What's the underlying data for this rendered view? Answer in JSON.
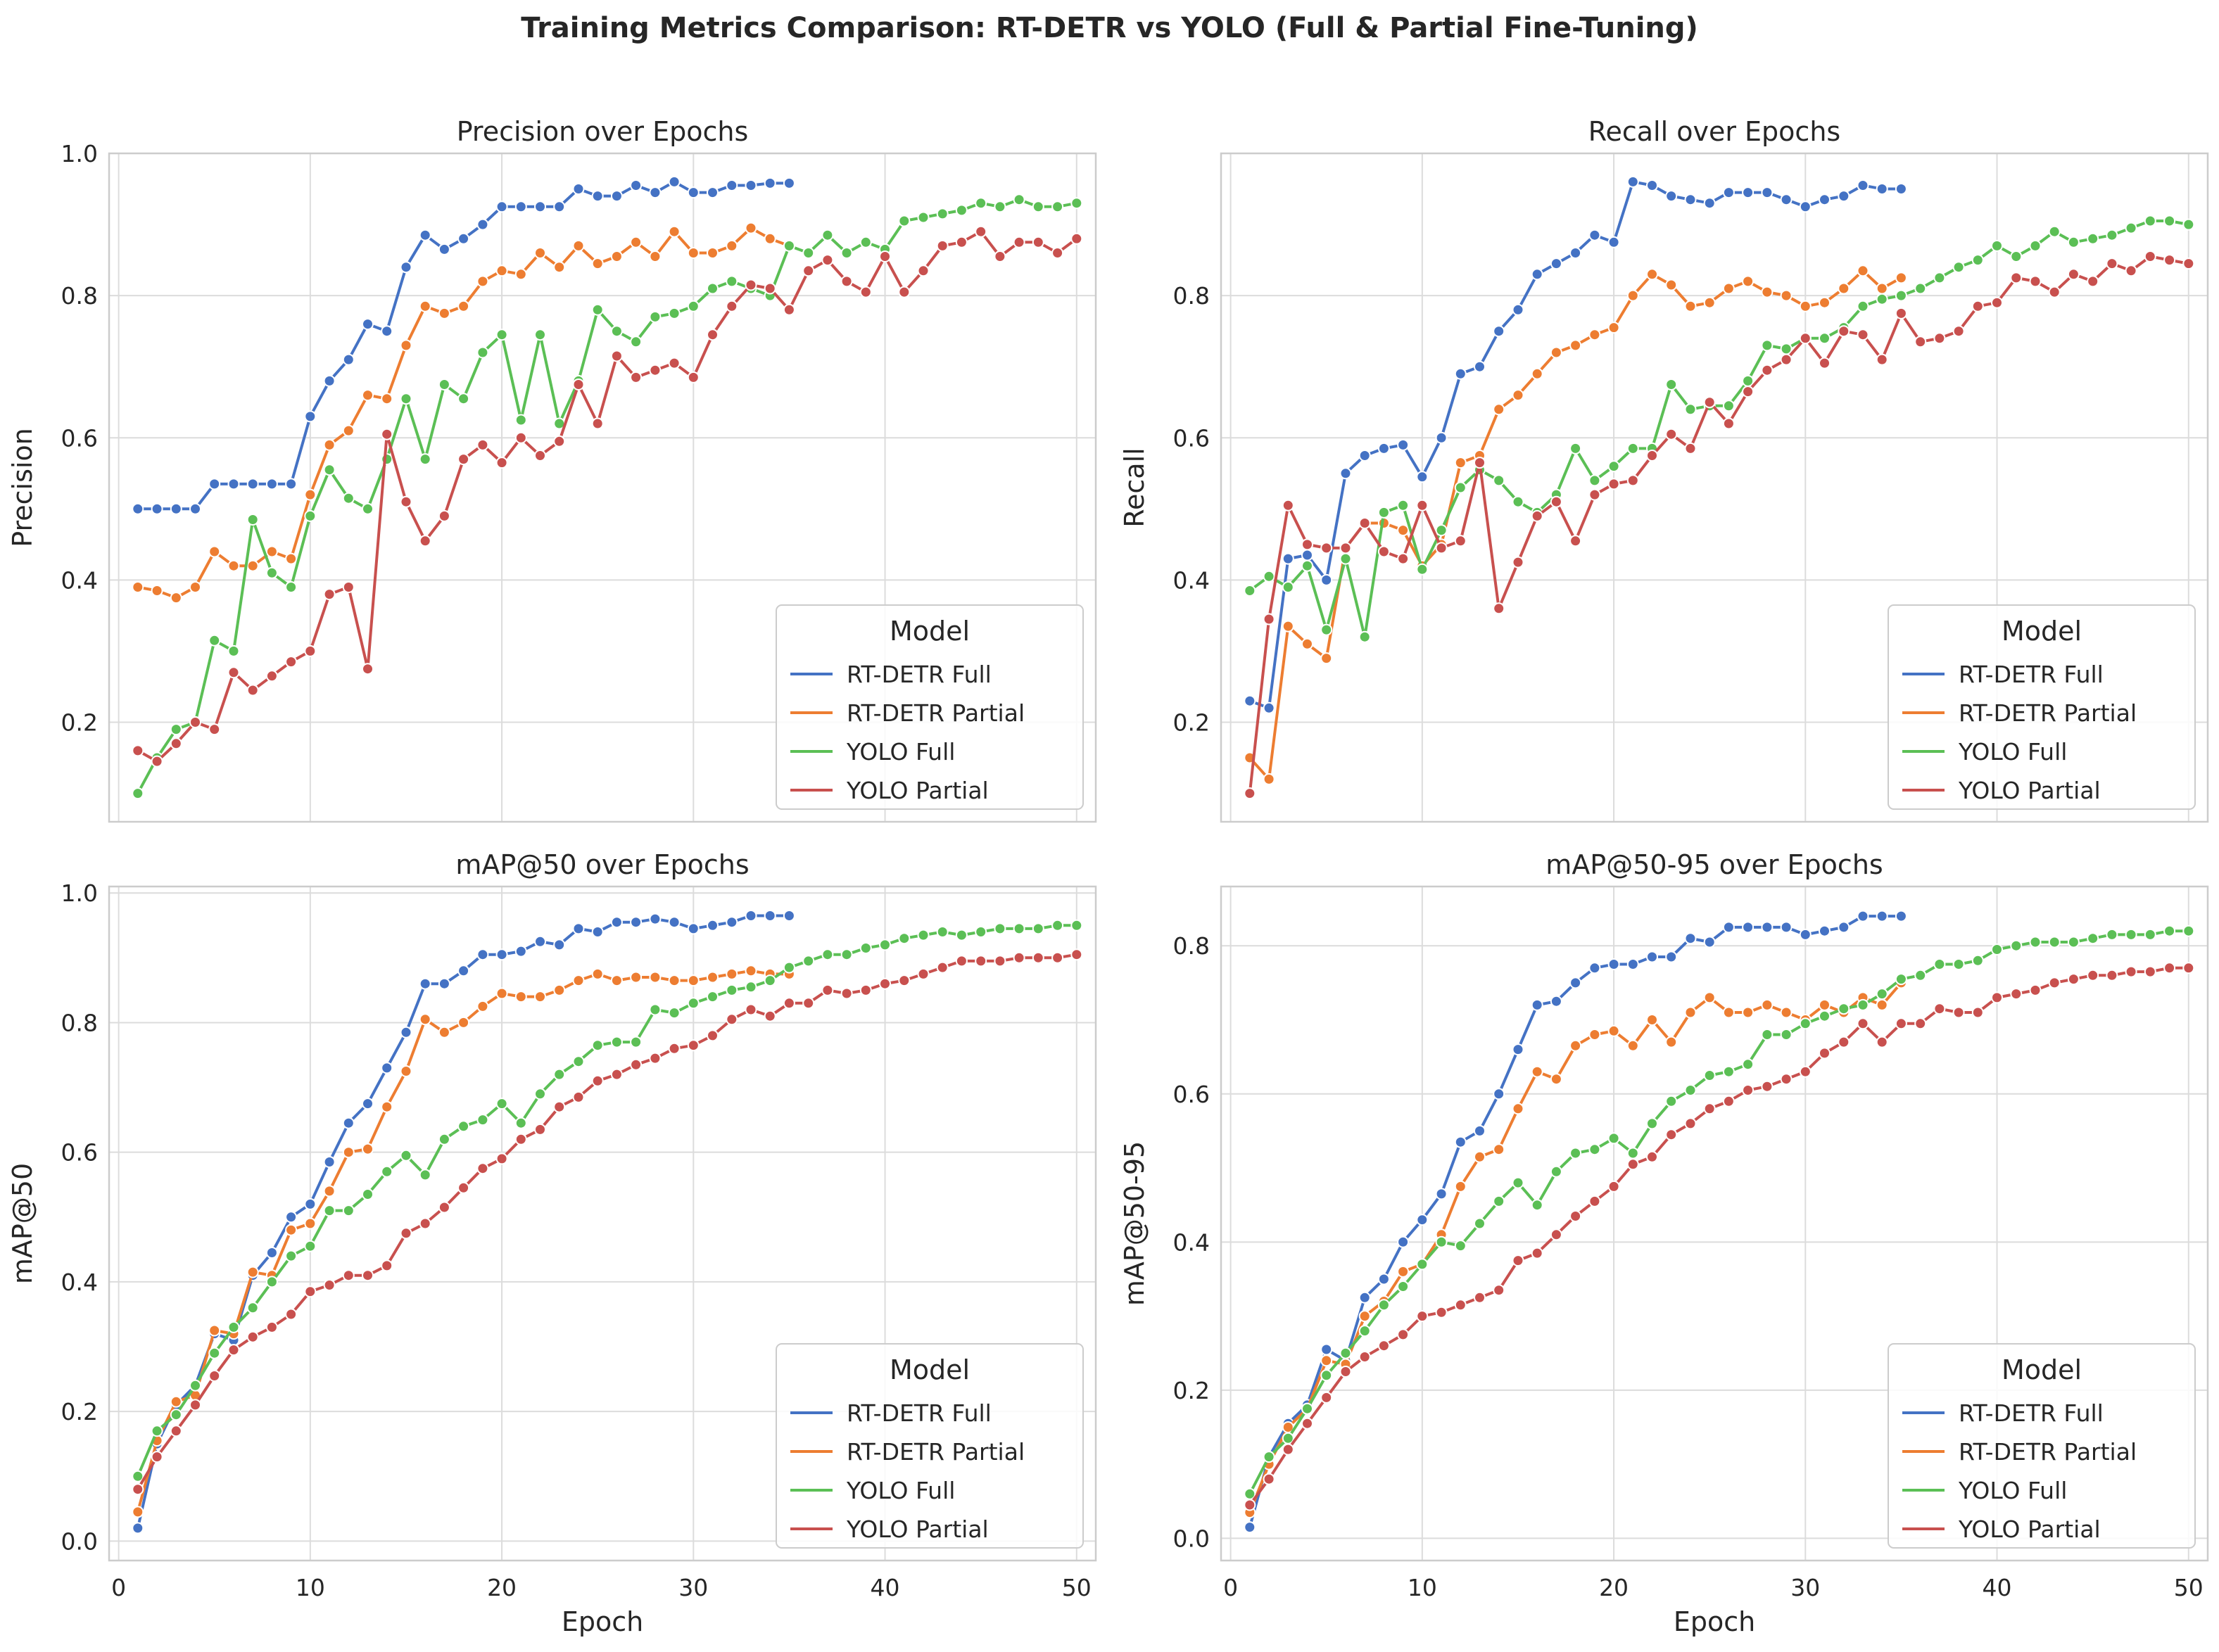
{
  "figure": {
    "title": "Training Metrics Comparison: RT-DETR vs YOLO (Full & Partial Fine-Tuning)"
  },
  "chart_data": [
    {
      "type": "line",
      "title": "Precision over Epochs",
      "xlabel": "",
      "ylabel": "Precision",
      "xlim": [
        -0.5,
        51
      ],
      "ylim": [
        0.06,
        1.0
      ],
      "xticks": [
        0,
        10,
        20,
        30,
        40,
        50
      ],
      "yticks": [
        0.2,
        0.4,
        0.6,
        0.8,
        1.0
      ],
      "grid": true,
      "legend": {
        "title": "Model",
        "placement": "lower-right"
      },
      "series": [
        {
          "name": "RT-DETR Full",
          "color": "#4472c4",
          "x_start": 1,
          "values": [
            0.5,
            0.5,
            0.5,
            0.5,
            0.535,
            0.535,
            0.535,
            0.535,
            0.535,
            0.63,
            0.68,
            0.71,
            0.76,
            0.75,
            0.84,
            0.885,
            0.865,
            0.88,
            0.9,
            0.925,
            0.925,
            0.925,
            0.925,
            0.95,
            0.94,
            0.94,
            0.955,
            0.945,
            0.96,
            0.945,
            0.945,
            0.955,
            0.955,
            0.958,
            0.958
          ]
        },
        {
          "name": "RT-DETR Partial",
          "color": "#ed7d31",
          "x_start": 1,
          "values": [
            0.39,
            0.385,
            0.375,
            0.39,
            0.44,
            0.42,
            0.42,
            0.44,
            0.43,
            0.52,
            0.59,
            0.61,
            0.66,
            0.655,
            0.73,
            0.785,
            0.775,
            0.785,
            0.82,
            0.835,
            0.83,
            0.86,
            0.84,
            0.87,
            0.845,
            0.855,
            0.875,
            0.855,
            0.89,
            0.86,
            0.86,
            0.87,
            0.895,
            0.88,
            0.87
          ]
        },
        {
          "name": "YOLO Full",
          "color": "#5bbf55",
          "x_start": 1,
          "values": [
            0.1,
            0.15,
            0.19,
            0.2,
            0.315,
            0.3,
            0.485,
            0.41,
            0.39,
            0.49,
            0.555,
            0.515,
            0.5,
            0.57,
            0.655,
            0.57,
            0.675,
            0.655,
            0.72,
            0.745,
            0.625,
            0.745,
            0.62,
            0.68,
            0.78,
            0.75,
            0.735,
            0.77,
            0.775,
            0.785,
            0.81,
            0.82,
            0.81,
            0.8,
            0.87,
            0.86,
            0.885,
            0.86,
            0.875,
            0.865,
            0.905,
            0.91,
            0.915,
            0.92,
            0.93,
            0.925,
            0.935,
            0.925,
            0.925,
            0.93
          ]
        },
        {
          "name": "YOLO Partial",
          "color": "#c8504e",
          "x_start": 1,
          "values": [
            0.16,
            0.145,
            0.17,
            0.2,
            0.19,
            0.27,
            0.245,
            0.265,
            0.285,
            0.3,
            0.38,
            0.39,
            0.275,
            0.605,
            0.51,
            0.455,
            0.49,
            0.57,
            0.59,
            0.565,
            0.6,
            0.575,
            0.595,
            0.675,
            0.62,
            0.715,
            0.685,
            0.695,
            0.705,
            0.685,
            0.745,
            0.785,
            0.815,
            0.81,
            0.78,
            0.835,
            0.85,
            0.82,
            0.805,
            0.855,
            0.805,
            0.835,
            0.87,
            0.875,
            0.89,
            0.855,
            0.875,
            0.875,
            0.86,
            0.88
          ]
        }
      ]
    },
    {
      "type": "line",
      "title": "Recall over Epochs",
      "xlabel": "",
      "ylabel": "Recall",
      "xlim": [
        -0.5,
        51
      ],
      "ylim": [
        0.06,
        1.0
      ],
      "xticks": [
        0,
        10,
        20,
        30,
        40,
        50
      ],
      "yticks": [
        0.2,
        0.4,
        0.6,
        0.8
      ],
      "grid": true,
      "legend": {
        "title": "Model",
        "placement": "lower-right"
      },
      "series": [
        {
          "name": "RT-DETR Full",
          "color": "#4472c4",
          "x_start": 1,
          "values": [
            0.23,
            0.22,
            0.43,
            0.435,
            0.4,
            0.55,
            0.575,
            0.585,
            0.59,
            0.545,
            0.6,
            0.69,
            0.7,
            0.75,
            0.78,
            0.83,
            0.845,
            0.86,
            0.885,
            0.875,
            0.96,
            0.955,
            0.94,
            0.935,
            0.93,
            0.945,
            0.945,
            0.945,
            0.935,
            0.925,
            0.935,
            0.94,
            0.955,
            0.95,
            0.95
          ]
        },
        {
          "name": "RT-DETR Partial",
          "color": "#ed7d31",
          "x_start": 1,
          "values": [
            0.15,
            0.12,
            0.335,
            0.31,
            0.29,
            0.445,
            0.48,
            0.48,
            0.47,
            0.42,
            0.45,
            0.565,
            0.575,
            0.64,
            0.66,
            0.69,
            0.72,
            0.73,
            0.745,
            0.755,
            0.8,
            0.83,
            0.815,
            0.785,
            0.79,
            0.81,
            0.82,
            0.805,
            0.8,
            0.785,
            0.79,
            0.81,
            0.835,
            0.81,
            0.825
          ]
        },
        {
          "name": "YOLO Full",
          "color": "#5bbf55",
          "x_start": 1,
          "values": [
            0.385,
            0.405,
            0.39,
            0.42,
            0.33,
            0.43,
            0.32,
            0.495,
            0.505,
            0.415,
            0.47,
            0.53,
            0.555,
            0.54,
            0.51,
            0.495,
            0.52,
            0.585,
            0.54,
            0.56,
            0.585,
            0.585,
            0.675,
            0.64,
            0.645,
            0.645,
            0.68,
            0.73,
            0.725,
            0.74,
            0.74,
            0.755,
            0.785,
            0.795,
            0.8,
            0.81,
            0.825,
            0.84,
            0.85,
            0.87,
            0.855,
            0.87,
            0.89,
            0.875,
            0.88,
            0.885,
            0.895,
            0.905,
            0.905,
            0.9
          ]
        },
        {
          "name": "YOLO Partial",
          "color": "#c8504e",
          "x_start": 1,
          "values": [
            0.1,
            0.345,
            0.505,
            0.45,
            0.445,
            0.445,
            0.48,
            0.44,
            0.43,
            0.505,
            0.445,
            0.455,
            0.565,
            0.36,
            0.425,
            0.49,
            0.51,
            0.455,
            0.52,
            0.535,
            0.54,
            0.575,
            0.605,
            0.585,
            0.65,
            0.62,
            0.665,
            0.695,
            0.71,
            0.74,
            0.705,
            0.75,
            0.745,
            0.71,
            0.775,
            0.735,
            0.74,
            0.75,
            0.785,
            0.79,
            0.825,
            0.82,
            0.805,
            0.83,
            0.82,
            0.845,
            0.835,
            0.855,
            0.85,
            0.845
          ]
        }
      ]
    },
    {
      "type": "line",
      "title": "mAP@50 over Epochs",
      "xlabel": "Epoch",
      "ylabel": "mAP@50",
      "xlim": [
        -0.5,
        51
      ],
      "ylim": [
        -0.03,
        1.01
      ],
      "xticks": [
        0,
        10,
        20,
        30,
        40,
        50
      ],
      "yticks": [
        0.0,
        0.2,
        0.4,
        0.6,
        0.8,
        1.0
      ],
      "grid": true,
      "legend": {
        "title": "Model",
        "placement": "lower-right"
      },
      "series": [
        {
          "name": "RT-DETR Full",
          "color": "#4472c4",
          "x_start": 1,
          "values": [
            0.02,
            0.15,
            0.21,
            0.24,
            0.32,
            0.31,
            0.41,
            0.445,
            0.5,
            0.52,
            0.585,
            0.645,
            0.675,
            0.73,
            0.785,
            0.86,
            0.86,
            0.88,
            0.905,
            0.905,
            0.91,
            0.925,
            0.92,
            0.945,
            0.94,
            0.955,
            0.955,
            0.96,
            0.955,
            0.945,
            0.95,
            0.955,
            0.965,
            0.965,
            0.965
          ]
        },
        {
          "name": "RT-DETR Partial",
          "color": "#ed7d31",
          "x_start": 1,
          "values": [
            0.045,
            0.155,
            0.215,
            0.225,
            0.325,
            0.32,
            0.415,
            0.41,
            0.48,
            0.49,
            0.54,
            0.6,
            0.605,
            0.67,
            0.725,
            0.805,
            0.785,
            0.8,
            0.825,
            0.845,
            0.84,
            0.84,
            0.85,
            0.865,
            0.875,
            0.865,
            0.87,
            0.87,
            0.865,
            0.865,
            0.87,
            0.875,
            0.88,
            0.875,
            0.875
          ]
        },
        {
          "name": "YOLO Full",
          "color": "#5bbf55",
          "x_start": 1,
          "values": [
            0.1,
            0.17,
            0.195,
            0.24,
            0.29,
            0.33,
            0.36,
            0.4,
            0.44,
            0.455,
            0.51,
            0.51,
            0.535,
            0.57,
            0.595,
            0.565,
            0.62,
            0.64,
            0.65,
            0.675,
            0.645,
            0.69,
            0.72,
            0.74,
            0.765,
            0.77,
            0.77,
            0.82,
            0.815,
            0.83,
            0.84,
            0.85,
            0.855,
            0.865,
            0.885,
            0.895,
            0.905,
            0.905,
            0.915,
            0.92,
            0.93,
            0.935,
            0.94,
            0.935,
            0.94,
            0.945,
            0.945,
            0.945,
            0.95,
            0.95
          ]
        },
        {
          "name": "YOLO Partial",
          "color": "#c8504e",
          "x_start": 1,
          "values": [
            0.08,
            0.13,
            0.17,
            0.21,
            0.255,
            0.295,
            0.315,
            0.33,
            0.35,
            0.385,
            0.395,
            0.41,
            0.41,
            0.425,
            0.475,
            0.49,
            0.515,
            0.545,
            0.575,
            0.59,
            0.62,
            0.635,
            0.67,
            0.685,
            0.71,
            0.72,
            0.735,
            0.745,
            0.76,
            0.765,
            0.78,
            0.805,
            0.82,
            0.81,
            0.83,
            0.83,
            0.85,
            0.845,
            0.85,
            0.86,
            0.865,
            0.875,
            0.885,
            0.895,
            0.895,
            0.895,
            0.9,
            0.9,
            0.9,
            0.905
          ]
        }
      ]
    },
    {
      "type": "line",
      "title": "mAP@50-95 over Epochs",
      "xlabel": "Epoch",
      "ylabel": "mAP@50-95",
      "xlim": [
        -0.5,
        51
      ],
      "ylim": [
        -0.03,
        0.88
      ],
      "xticks": [
        0,
        10,
        20,
        30,
        40,
        50
      ],
      "yticks": [
        0.0,
        0.2,
        0.4,
        0.6,
        0.8
      ],
      "grid": true,
      "legend": {
        "title": "Model",
        "placement": "lower-right"
      },
      "series": [
        {
          "name": "RT-DETR Full",
          "color": "#4472c4",
          "x_start": 1,
          "values": [
            0.015,
            0.11,
            0.155,
            0.18,
            0.255,
            0.24,
            0.325,
            0.35,
            0.4,
            0.43,
            0.465,
            0.535,
            0.55,
            0.6,
            0.66,
            0.72,
            0.725,
            0.75,
            0.77,
            0.775,
            0.775,
            0.785,
            0.785,
            0.81,
            0.805,
            0.825,
            0.825,
            0.825,
            0.825,
            0.815,
            0.82,
            0.825,
            0.84,
            0.84,
            0.84
          ]
        },
        {
          "name": "RT-DETR Partial",
          "color": "#ed7d31",
          "x_start": 1,
          "values": [
            0.035,
            0.1,
            0.15,
            0.175,
            0.24,
            0.235,
            0.3,
            0.32,
            0.36,
            0.37,
            0.41,
            0.475,
            0.515,
            0.525,
            0.58,
            0.63,
            0.62,
            0.665,
            0.68,
            0.685,
            0.665,
            0.7,
            0.67,
            0.71,
            0.73,
            0.71,
            0.71,
            0.72,
            0.71,
            0.7,
            0.72,
            0.71,
            0.73,
            0.72,
            0.75
          ]
        },
        {
          "name": "YOLO Full",
          "color": "#5bbf55",
          "x_start": 1,
          "values": [
            0.06,
            0.11,
            0.135,
            0.175,
            0.22,
            0.25,
            0.28,
            0.315,
            0.34,
            0.37,
            0.4,
            0.395,
            0.425,
            0.455,
            0.48,
            0.45,
            0.495,
            0.52,
            0.525,
            0.54,
            0.52,
            0.56,
            0.59,
            0.605,
            0.625,
            0.63,
            0.64,
            0.68,
            0.68,
            0.695,
            0.705,
            0.715,
            0.72,
            0.735,
            0.755,
            0.76,
            0.775,
            0.775,
            0.78,
            0.795,
            0.8,
            0.805,
            0.805,
            0.805,
            0.81,
            0.815,
            0.815,
            0.815,
            0.82,
            0.82
          ]
        },
        {
          "name": "YOLO Partial",
          "color": "#c8504e",
          "x_start": 1,
          "values": [
            0.045,
            0.08,
            0.12,
            0.155,
            0.19,
            0.225,
            0.245,
            0.26,
            0.275,
            0.3,
            0.305,
            0.315,
            0.325,
            0.335,
            0.375,
            0.385,
            0.41,
            0.435,
            0.455,
            0.475,
            0.505,
            0.515,
            0.545,
            0.56,
            0.58,
            0.59,
            0.605,
            0.61,
            0.62,
            0.63,
            0.655,
            0.67,
            0.695,
            0.67,
            0.695,
            0.695,
            0.715,
            0.71,
            0.71,
            0.73,
            0.735,
            0.74,
            0.75,
            0.755,
            0.76,
            0.76,
            0.765,
            0.765,
            0.77,
            0.77
          ]
        }
      ]
    }
  ]
}
